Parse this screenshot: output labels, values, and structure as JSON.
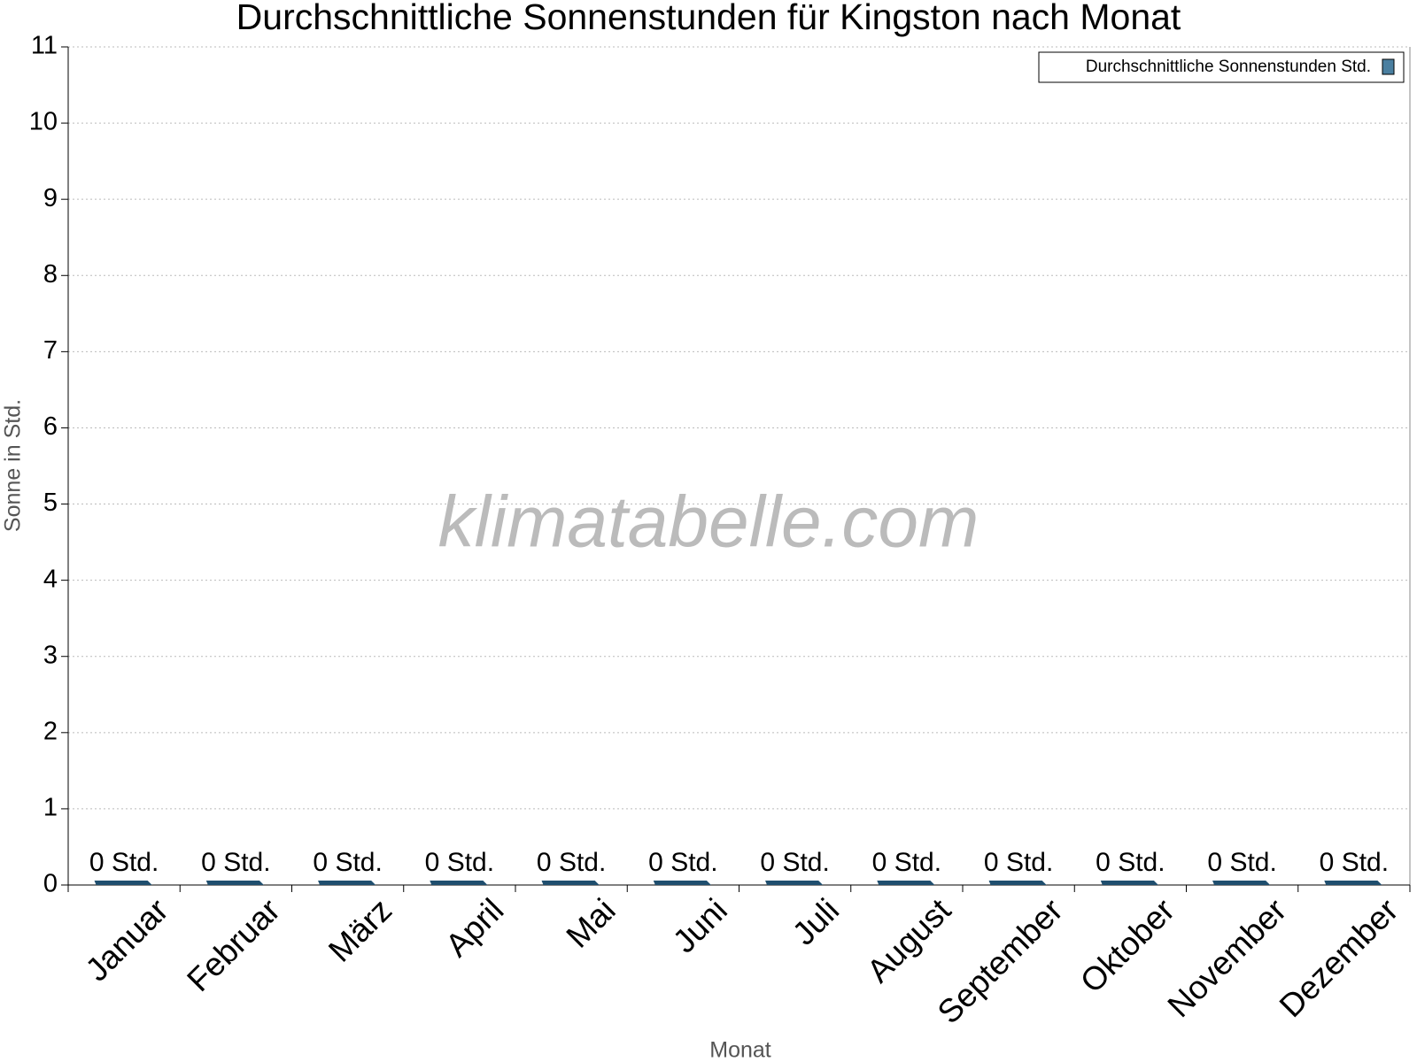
{
  "chart_data": {
    "type": "bar",
    "title": "Durchschnittliche Sonnenstunden für Kingston nach Monat",
    "x_label": "Monat",
    "y_label": "Sonne in Std.",
    "watermark": "klimatabelle.com",
    "categories": [
      "Januar",
      "Februar",
      "März",
      "April",
      "Mai",
      "Juni",
      "Juli",
      "August",
      "September",
      "Oktober",
      "November",
      "Dezember"
    ],
    "series": [
      {
        "name": "Durchschnittliche Sonnenstunden Std.",
        "color": "#1f4e6e",
        "legend_color": "#4a7fa0",
        "values": [
          0,
          0,
          0,
          0,
          0,
          0,
          0,
          0,
          0,
          0,
          0,
          0
        ],
        "value_labels": [
          "0 Std.",
          "0 Std.",
          "0 Std.",
          "0 Std.",
          "0 Std.",
          "0 Std.",
          "0 Std.",
          "0 Std.",
          "0 Std.",
          "0 Std.",
          "0 Std.",
          "0 Std."
        ]
      }
    ],
    "ylim": [
      0,
      11
    ],
    "yticks": [
      0,
      1,
      2,
      3,
      4,
      5,
      6,
      7,
      8,
      9,
      10,
      11
    ],
    "grid": true,
    "legend": "top-right"
  }
}
